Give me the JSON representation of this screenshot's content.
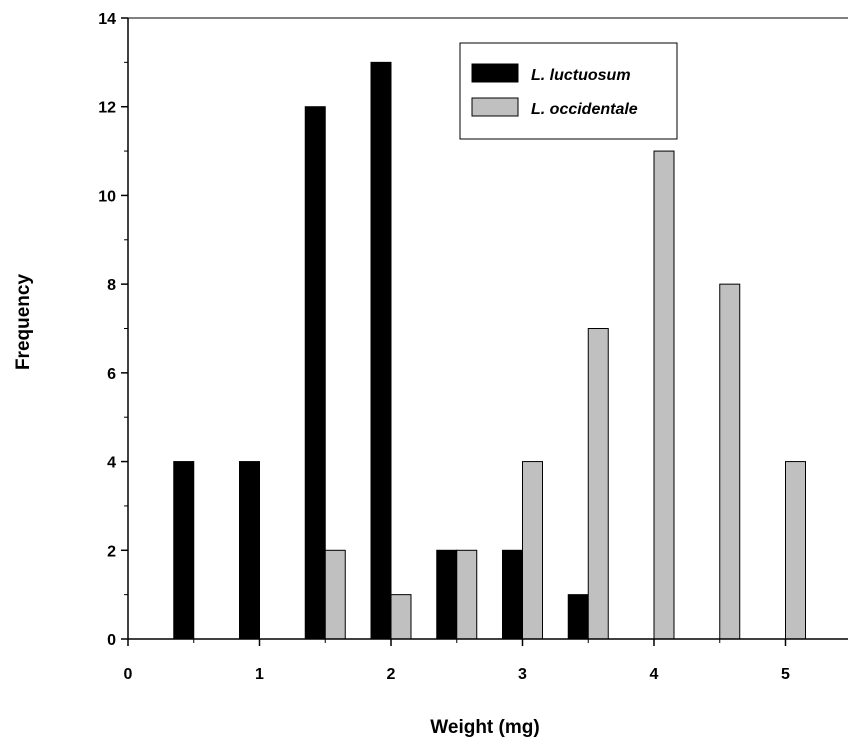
{
  "chart_data": {
    "type": "bar",
    "title": "",
    "xlabel": "Weight (mg)",
    "ylabel": "Frequency",
    "xlim": [
      0,
      5.5
    ],
    "ylim": [
      0,
      14
    ],
    "xticks": [
      0,
      1,
      2,
      3,
      4,
      5
    ],
    "yticks": [
      0,
      2,
      4,
      6,
      8,
      10,
      12,
      14
    ],
    "categories": [
      0.5,
      1.0,
      1.5,
      2.0,
      2.5,
      3.0,
      3.5,
      4.0,
      4.5,
      5.0
    ],
    "series": [
      {
        "name": "L. luctuosum",
        "color": "#000000",
        "values": [
          4,
          4,
          12,
          13,
          2,
          2,
          1,
          0,
          0,
          0
        ]
      },
      {
        "name": "L. occidentale",
        "color": "#c0c0c0",
        "values": [
          0,
          0,
          2,
          1,
          2,
          4,
          7,
          11,
          8,
          4
        ]
      }
    ],
    "legend": {
      "position": "top-right"
    },
    "grid": false
  }
}
